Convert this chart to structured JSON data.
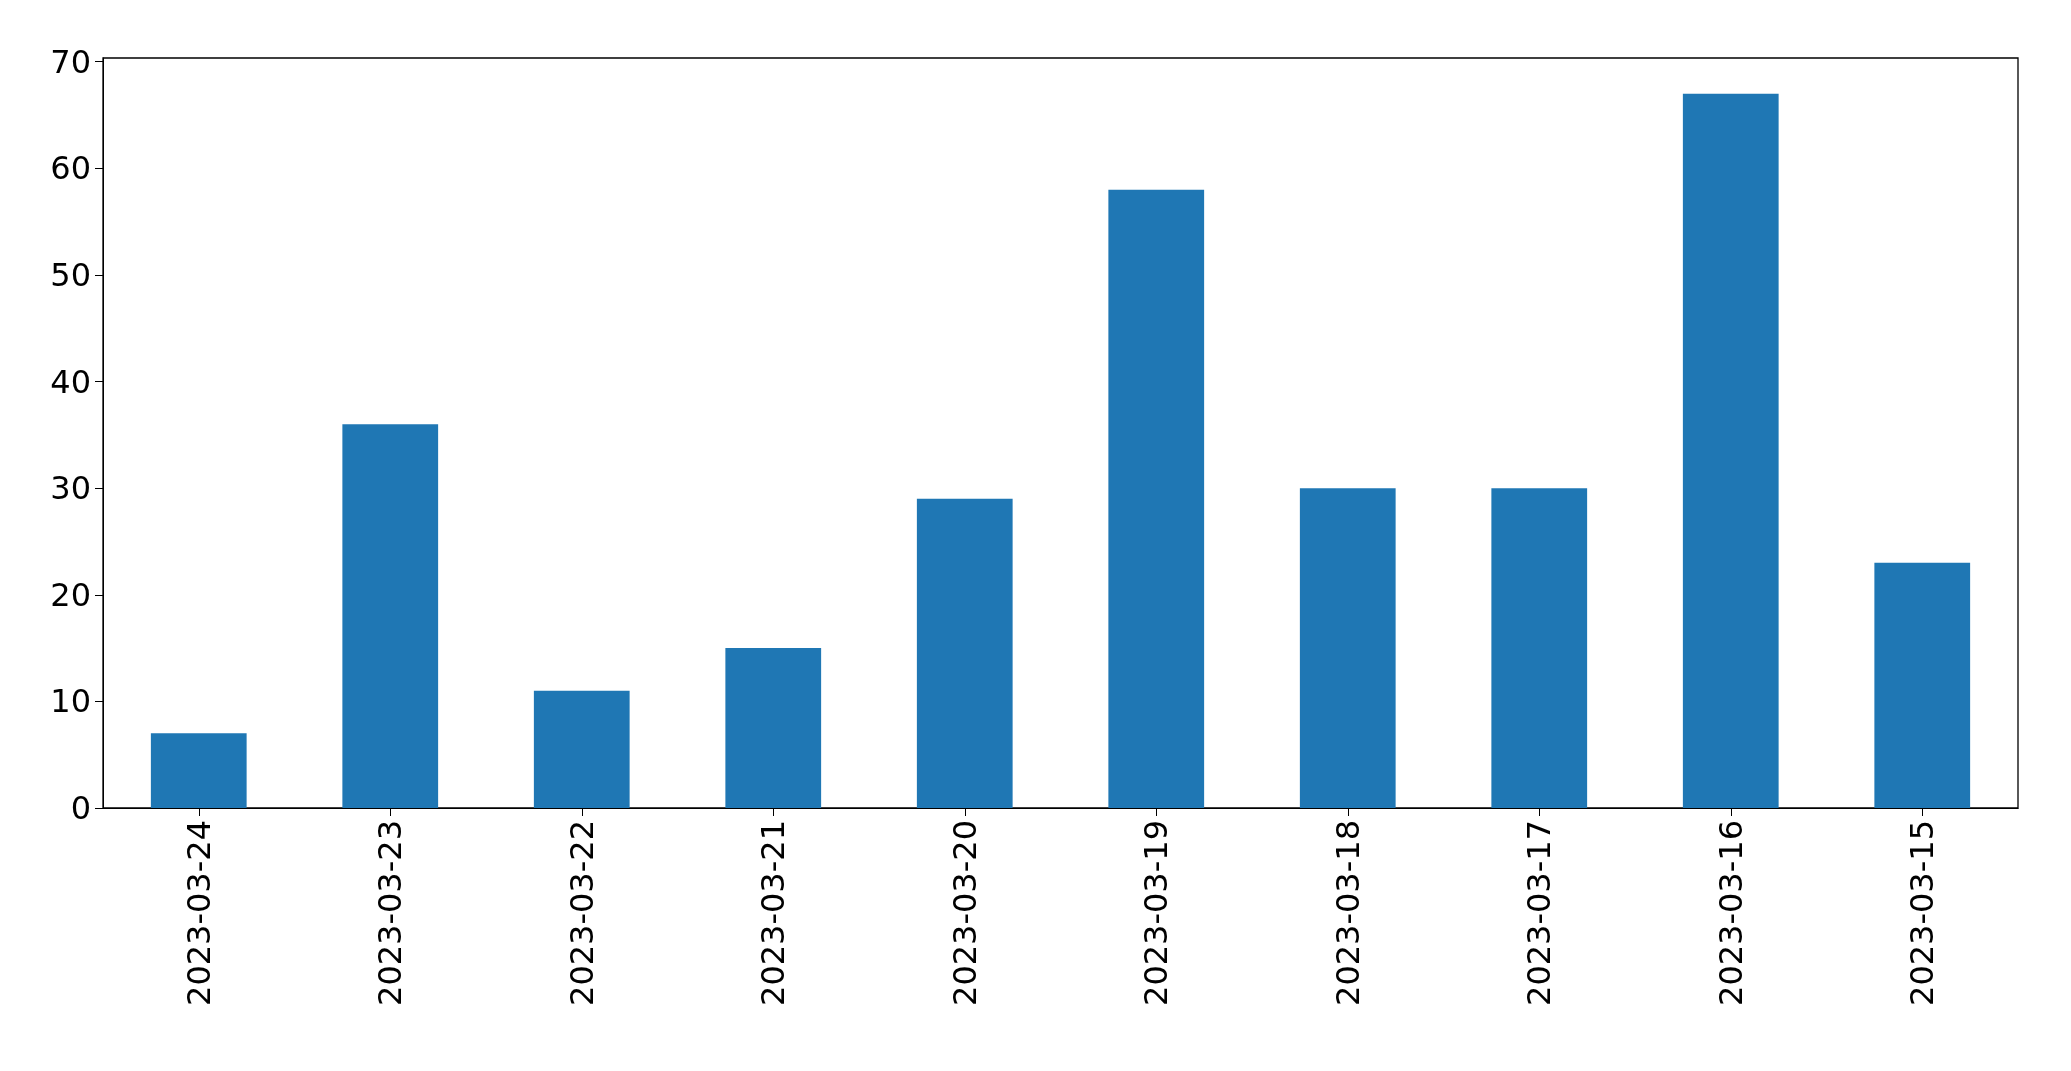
{
  "chart_data": {
    "type": "bar",
    "categories": [
      "2023-03-24",
      "2023-03-23",
      "2023-03-22",
      "2023-03-21",
      "2023-03-20",
      "2023-03-19",
      "2023-03-18",
      "2023-03-17",
      "2023-03-16",
      "2023-03-15"
    ],
    "values": [
      7,
      36,
      11,
      15,
      29,
      58,
      30,
      30,
      67,
      23
    ],
    "color": "#1f77b4",
    "ylim": [
      0,
      70.35
    ],
    "yticks": [
      0,
      10,
      20,
      30,
      40,
      50,
      60,
      70
    ],
    "grid": false
  }
}
